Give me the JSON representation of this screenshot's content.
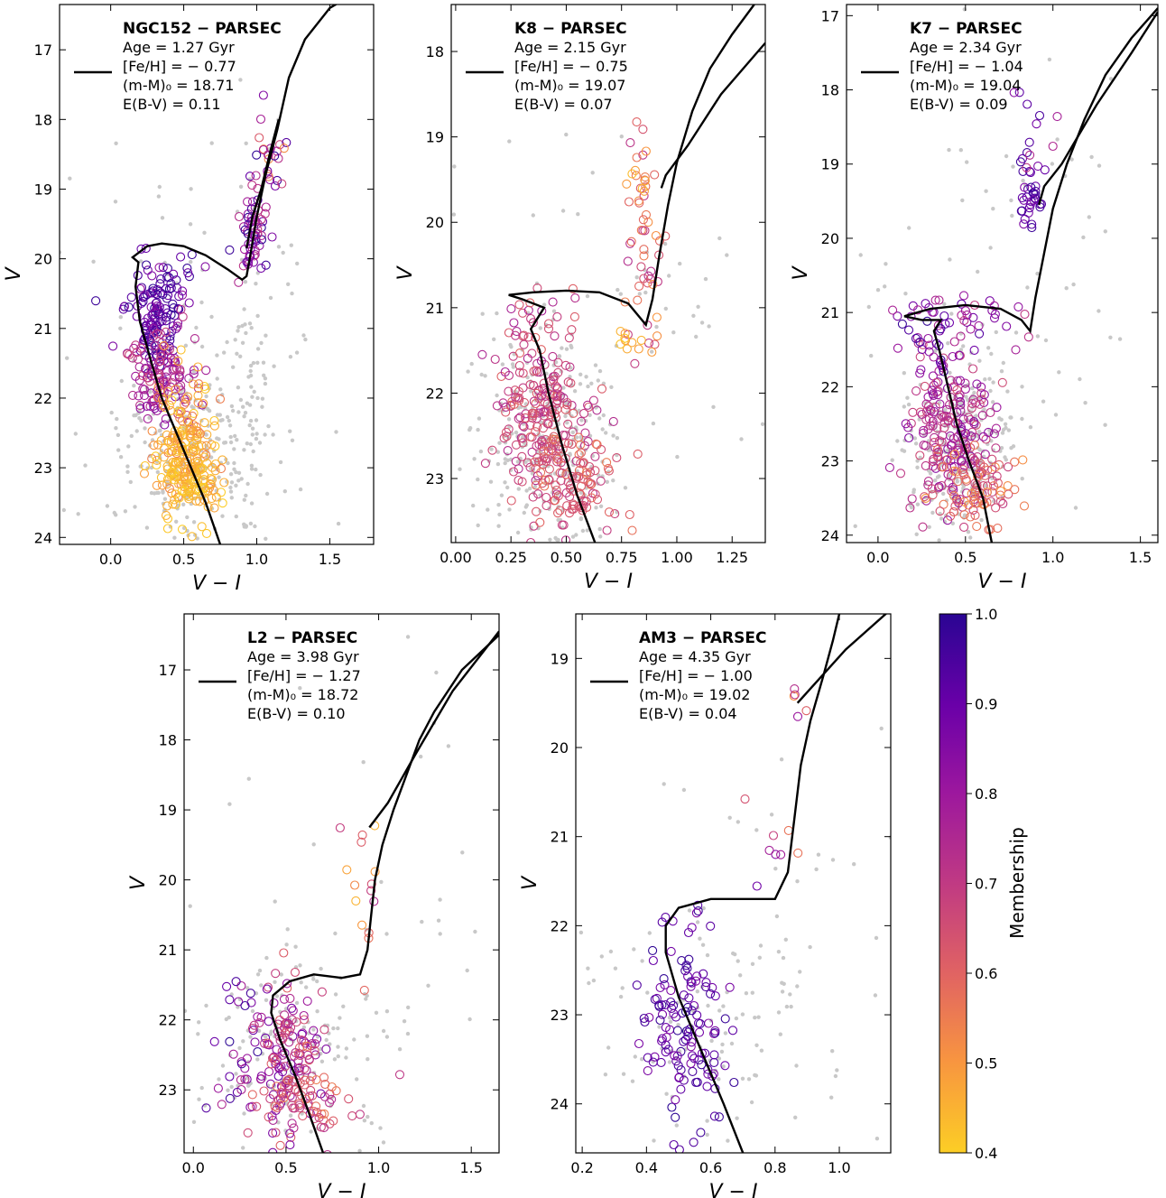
{
  "colorbar": {
    "label": "Membership",
    "ticks": [
      "1.0",
      "0.9",
      "0.8",
      "0.7",
      "0.6",
      "0.5",
      "0.4"
    ],
    "range": [
      0.4,
      1.0
    ]
  },
  "background_color": "#c8c8c8",
  "isochrone_color": "#000000",
  "chart_data": [
    {
      "type": "scatter",
      "name": "NGC152",
      "title": "NGC152 − PARSEC",
      "params": [
        "Age = 1.27 Gyr",
        "[Fe/H] = − 0.77",
        "(m-M)₀ = 18.71",
        "E(B-V) = 0.11"
      ],
      "xlabel": "V − I",
      "ylabel": "V",
      "xlim": [
        -0.35,
        1.8
      ],
      "ylim": [
        24.1,
        16.35
      ],
      "y_inverted": true,
      "xticks": [
        0.0,
        0.5,
        1.0,
        1.5
      ],
      "xtick_labels": [
        "0.0",
        "0.5",
        "1.0",
        "1.5"
      ],
      "yticks": [
        17,
        18,
        19,
        20,
        21,
        22,
        23,
        24
      ],
      "ytick_labels": [
        "17",
        "18",
        "19",
        "20",
        "21",
        "22",
        "23",
        "24"
      ],
      "isochrone": [
        [
          0.75,
          24.1
        ],
        [
          0.65,
          23.5
        ],
        [
          0.55,
          23.0
        ],
        [
          0.45,
          22.5
        ],
        [
          0.35,
          22.0
        ],
        [
          0.28,
          21.5
        ],
        [
          0.2,
          20.9
        ],
        [
          0.17,
          20.4
        ],
        [
          0.19,
          20.05
        ],
        [
          0.15,
          19.98
        ],
        [
          0.25,
          19.82
        ],
        [
          0.35,
          19.78
        ],
        [
          0.5,
          19.82
        ],
        [
          0.65,
          19.95
        ],
        [
          0.8,
          20.15
        ],
        [
          0.9,
          20.3
        ],
        [
          0.93,
          20.25
        ],
        [
          0.96,
          19.9
        ],
        [
          1.0,
          19.4
        ],
        [
          1.06,
          18.8
        ],
        [
          1.14,
          18.15
        ],
        [
          1.22,
          17.4
        ],
        [
          1.33,
          16.85
        ],
        [
          1.5,
          16.4
        ],
        [
          1.62,
          16.25
        ]
      ],
      "isochrone_agb": [
        [
          0.93,
          19.85
        ],
        [
          0.97,
          19.4
        ],
        [
          1.03,
          19.0
        ],
        [
          1.1,
          18.4
        ],
        [
          1.15,
          18.0
        ]
      ],
      "members": [
        {
          "cx": 0.3,
          "cy": 20.9,
          "sx": 0.1,
          "sy": 0.35,
          "n": 120,
          "m": [
            0.85,
            1.0
          ]
        },
        {
          "cx": 0.32,
          "cy": 21.7,
          "sx": 0.12,
          "sy": 0.35,
          "n": 120,
          "m": [
            0.65,
            0.85
          ]
        },
        {
          "cx": 0.5,
          "cy": 22.6,
          "sx": 0.12,
          "sy": 0.4,
          "n": 140,
          "m": [
            0.4,
            0.55
          ]
        },
        {
          "cx": 0.55,
          "cy": 23.2,
          "sx": 0.1,
          "sy": 0.3,
          "n": 110,
          "m": [
            0.4,
            0.48
          ]
        },
        {
          "cx": 0.98,
          "cy": 19.6,
          "sx": 0.05,
          "sy": 0.3,
          "n": 60,
          "m": [
            0.7,
            1.0
          ]
        },
        {
          "cx": 1.1,
          "cy": 18.5,
          "sx": 0.06,
          "sy": 0.4,
          "n": 25,
          "m": [
            0.5,
            1.0
          ]
        },
        {
          "cx": 0.4,
          "cy": 20.3,
          "sx": 0.15,
          "sy": 0.15,
          "n": 20,
          "m": [
            0.8,
            1.0
          ]
        }
      ],
      "background": [
        {
          "cx": 0.55,
          "cy": 22.8,
          "sx": 0.25,
          "sy": 0.7,
          "n": 260
        },
        {
          "cx": 0.95,
          "cy": 21.5,
          "sx": 0.06,
          "sy": 1.2,
          "n": 60
        },
        {
          "cx": 0.6,
          "cy": 21.0,
          "sx": 0.6,
          "sy": 1.8,
          "n": 90
        }
      ]
    },
    {
      "type": "scatter",
      "name": "K8",
      "title": "K8 − PARSEC",
      "params": [
        "Age = 2.15 Gyr",
        "[Fe/H] = − 0.75",
        "(m-M)₀ = 19.07",
        "E(B-V) = 0.07"
      ],
      "xlabel": "V − I",
      "ylabel": "V",
      "xlim": [
        -0.02,
        1.4
      ],
      "ylim": [
        23.75,
        17.45
      ],
      "y_inverted": true,
      "xticks": [
        0.0,
        0.25,
        0.5,
        0.75,
        1.0,
        1.25
      ],
      "xtick_labels": [
        "0.00",
        "0.25",
        "0.50",
        "0.75",
        "1.00",
        "1.25"
      ],
      "yticks": [
        18,
        19,
        20,
        21,
        22,
        23
      ],
      "ytick_labels": [
        "18",
        "19",
        "20",
        "21",
        "22",
        "23"
      ],
      "isochrone": [
        [
          0.63,
          23.75
        ],
        [
          0.55,
          23.2
        ],
        [
          0.48,
          22.6
        ],
        [
          0.42,
          22.0
        ],
        [
          0.38,
          21.5
        ],
        [
          0.34,
          21.25
        ],
        [
          0.4,
          21.0
        ],
        [
          0.3,
          20.9
        ],
        [
          0.24,
          20.85
        ],
        [
          0.35,
          20.82
        ],
        [
          0.5,
          20.8
        ],
        [
          0.65,
          20.82
        ],
        [
          0.78,
          20.95
        ],
        [
          0.86,
          21.2
        ],
        [
          0.89,
          20.9
        ],
        [
          0.92,
          20.4
        ],
        [
          0.96,
          19.8
        ],
        [
          1.0,
          19.3
        ],
        [
          1.07,
          18.7
        ],
        [
          1.15,
          18.2
        ],
        [
          1.25,
          17.8
        ],
        [
          1.35,
          17.45
        ]
      ],
      "isochrone_agb": [
        [
          0.93,
          19.6
        ],
        [
          0.95,
          19.45
        ],
        [
          1.05,
          19.1
        ],
        [
          1.2,
          18.5
        ],
        [
          1.4,
          17.9
        ]
      ],
      "members": [
        {
          "cx": 0.4,
          "cy": 22.3,
          "sx": 0.1,
          "sy": 0.5,
          "n": 200,
          "m": [
            0.6,
            0.75
          ]
        },
        {
          "cx": 0.55,
          "cy": 23.0,
          "sx": 0.1,
          "sy": 0.35,
          "n": 90,
          "m": [
            0.55,
            0.7
          ]
        },
        {
          "cx": 0.35,
          "cy": 21.2,
          "sx": 0.12,
          "sy": 0.3,
          "n": 30,
          "m": [
            0.6,
            0.8
          ]
        },
        {
          "cx": 0.85,
          "cy": 20.5,
          "sx": 0.04,
          "sy": 0.6,
          "n": 40,
          "m": [
            0.5,
            0.75
          ]
        },
        {
          "cx": 0.83,
          "cy": 19.5,
          "sx": 0.03,
          "sy": 0.15,
          "n": 15,
          "m": [
            0.4,
            0.6
          ]
        },
        {
          "cx": 0.8,
          "cy": 21.4,
          "sx": 0.06,
          "sy": 0.1,
          "n": 10,
          "m": [
            0.4,
            0.5
          ]
        }
      ],
      "background": [
        {
          "cx": 0.42,
          "cy": 22.6,
          "sx": 0.15,
          "sy": 0.6,
          "n": 300
        },
        {
          "cx": 0.6,
          "cy": 21.0,
          "sx": 0.35,
          "sy": 1.4,
          "n": 70
        }
      ]
    },
    {
      "type": "scatter",
      "name": "K7",
      "title": "K7 − PARSEC",
      "params": [
        "Age = 2.34 Gyr",
        "[Fe/H] = − 1.04",
        "(m-M)₀ = 19.04",
        "E(B-V) = 0.09"
      ],
      "xlabel": "V − I",
      "ylabel": "V",
      "xlim": [
        -0.18,
        1.6
      ],
      "ylim": [
        24.1,
        16.85
      ],
      "y_inverted": true,
      "xticks": [
        0.0,
        0.5,
        1.0,
        1.5
      ],
      "xtick_labels": [
        "0.0",
        "0.5",
        "1.0",
        "1.5"
      ],
      "yticks": [
        17,
        18,
        19,
        20,
        21,
        22,
        23,
        24
      ],
      "ytick_labels": [
        "17",
        "18",
        "19",
        "20",
        "21",
        "22",
        "23",
        "24"
      ],
      "isochrone": [
        [
          0.65,
          24.1
        ],
        [
          0.6,
          23.5
        ],
        [
          0.52,
          23.0
        ],
        [
          0.45,
          22.5
        ],
        [
          0.4,
          22.0
        ],
        [
          0.35,
          21.5
        ],
        [
          0.32,
          21.25
        ],
        [
          0.36,
          21.1
        ],
        [
          0.25,
          21.1
        ],
        [
          0.15,
          21.05
        ],
        [
          0.3,
          20.95
        ],
        [
          0.5,
          20.9
        ],
        [
          0.7,
          20.95
        ],
        [
          0.82,
          21.1
        ],
        [
          0.87,
          21.25
        ],
        [
          0.9,
          20.8
        ],
        [
          0.95,
          20.2
        ],
        [
          1.0,
          19.6
        ],
        [
          1.08,
          19.0
        ],
        [
          1.18,
          18.4
        ],
        [
          1.3,
          17.8
        ],
        [
          1.45,
          17.3
        ],
        [
          1.6,
          16.9
        ]
      ],
      "isochrone_agb": [
        [
          0.92,
          19.55
        ],
        [
          0.95,
          19.3
        ],
        [
          1.05,
          19.0
        ],
        [
          1.25,
          18.2
        ],
        [
          1.45,
          17.5
        ],
        [
          1.6,
          16.95
        ]
      ],
      "members": [
        {
          "cx": 0.42,
          "cy": 22.6,
          "sx": 0.12,
          "sy": 0.55,
          "n": 200,
          "m": [
            0.65,
            0.85
          ]
        },
        {
          "cx": 0.55,
          "cy": 23.4,
          "sx": 0.12,
          "sy": 0.3,
          "n": 90,
          "m": [
            0.5,
            0.7
          ]
        },
        {
          "cx": 0.3,
          "cy": 21.3,
          "sx": 0.12,
          "sy": 0.3,
          "n": 40,
          "m": [
            0.75,
            1.0
          ]
        },
        {
          "cx": 0.88,
          "cy": 19.4,
          "sx": 0.04,
          "sy": 0.2,
          "n": 30,
          "m": [
            0.85,
            1.0
          ]
        },
        {
          "cx": 0.9,
          "cy": 18.5,
          "sx": 0.06,
          "sy": 0.5,
          "n": 15,
          "m": [
            0.7,
            1.0
          ]
        },
        {
          "cx": 0.6,
          "cy": 21.1,
          "sx": 0.15,
          "sy": 0.15,
          "n": 20,
          "m": [
            0.7,
            0.9
          ]
        }
      ],
      "background": [
        {
          "cx": 0.45,
          "cy": 22.8,
          "sx": 0.15,
          "sy": 0.6,
          "n": 280
        },
        {
          "cx": 0.7,
          "cy": 20.5,
          "sx": 0.4,
          "sy": 1.6,
          "n": 70
        }
      ]
    },
    {
      "type": "scatter",
      "name": "L2",
      "title": "L2 − PARSEC",
      "params": [
        "Age = 3.98 Gyr",
        "[Fe/H] = − 1.27",
        "(m-M)₀ = 18.72",
        "E(B-V) = 0.10"
      ],
      "xlabel": "V − I",
      "ylabel": "V",
      "xlim": [
        -0.05,
        1.65
      ],
      "ylim": [
        23.9,
        16.2
      ],
      "y_inverted": true,
      "xticks": [
        0.0,
        0.5,
        1.0,
        1.5
      ],
      "xtick_labels": [
        "0.0",
        "0.5",
        "1.0",
        "1.5"
      ],
      "yticks": [
        17,
        18,
        19,
        20,
        21,
        22,
        23
      ],
      "ytick_labels": [
        "17",
        "18",
        "19",
        "20",
        "21",
        "22",
        "23"
      ],
      "isochrone": [
        [
          0.7,
          23.9
        ],
        [
          0.62,
          23.3
        ],
        [
          0.55,
          22.8
        ],
        [
          0.47,
          22.3
        ],
        [
          0.42,
          21.9
        ],
        [
          0.43,
          21.65
        ],
        [
          0.52,
          21.45
        ],
        [
          0.65,
          21.35
        ],
        [
          0.8,
          21.4
        ],
        [
          0.9,
          21.35
        ],
        [
          0.94,
          21.0
        ],
        [
          0.96,
          20.5
        ],
        [
          0.98,
          20.0
        ],
        [
          1.02,
          19.5
        ],
        [
          1.08,
          19.0
        ],
        [
          1.15,
          18.5
        ],
        [
          1.22,
          18.0
        ],
        [
          1.3,
          17.6
        ],
        [
          1.45,
          17.0
        ],
        [
          1.65,
          16.5
        ]
      ],
      "isochrone_agb": [
        [
          0.95,
          19.25
        ],
        [
          1.05,
          18.9
        ],
        [
          1.2,
          18.2
        ],
        [
          1.4,
          17.3
        ],
        [
          1.65,
          16.45
        ]
      ],
      "members": [
        {
          "cx": 0.5,
          "cy": 22.5,
          "sx": 0.1,
          "sy": 0.5,
          "n": 140,
          "m": [
            0.6,
            0.9
          ]
        },
        {
          "cx": 0.6,
          "cy": 23.1,
          "sx": 0.12,
          "sy": 0.35,
          "n": 70,
          "m": [
            0.55,
            0.75
          ]
        },
        {
          "cx": 0.25,
          "cy": 22.3,
          "sx": 0.08,
          "sy": 0.6,
          "n": 20,
          "m": [
            0.75,
            1.0
          ]
        },
        {
          "cx": 0.93,
          "cy": 20.0,
          "sx": 0.05,
          "sy": 0.8,
          "n": 15,
          "m": [
            0.4,
            0.8
          ]
        }
      ],
      "background": [
        {
          "cx": 0.55,
          "cy": 22.6,
          "sx": 0.25,
          "sy": 0.8,
          "n": 160
        },
        {
          "cx": 0.9,
          "cy": 20.5,
          "sx": 0.35,
          "sy": 1.5,
          "n": 40
        }
      ]
    },
    {
      "type": "scatter",
      "name": "AM3",
      "title": "AM3 − PARSEC",
      "params": [
        "Age = 4.35 Gyr",
        "[Fe/H] = − 1.00",
        "(m-M)₀ = 19.02",
        "E(B-V) = 0.04"
      ],
      "xlabel": "V − I",
      "ylabel": "V",
      "xlim": [
        0.18,
        1.16
      ],
      "ylim": [
        24.55,
        18.5
      ],
      "y_inverted": true,
      "xticks": [
        0.2,
        0.4,
        0.6,
        0.8,
        1.0
      ],
      "xtick_labels": [
        "0.2",
        "0.4",
        "0.6",
        "0.8",
        "1.0"
      ],
      "yticks": [
        19,
        20,
        21,
        22,
        23,
        24
      ],
      "ytick_labels": [
        "19",
        "20",
        "21",
        "22",
        "23",
        "24"
      ],
      "isochrone": [
        [
          0.7,
          24.55
        ],
        [
          0.64,
          24.0
        ],
        [
          0.57,
          23.4
        ],
        [
          0.5,
          22.8
        ],
        [
          0.46,
          22.3
        ],
        [
          0.46,
          22.0
        ],
        [
          0.5,
          21.8
        ],
        [
          0.6,
          21.7
        ],
        [
          0.72,
          21.7
        ],
        [
          0.8,
          21.7
        ],
        [
          0.84,
          21.4
        ],
        [
          0.86,
          20.8
        ],
        [
          0.88,
          20.2
        ],
        [
          0.91,
          19.7
        ],
        [
          0.95,
          19.2
        ],
        [
          0.98,
          18.8
        ],
        [
          1.0,
          18.5
        ]
      ],
      "isochrone_agb": [
        [
          0.87,
          19.5
        ],
        [
          0.92,
          19.3
        ],
        [
          1.02,
          18.9
        ],
        [
          1.16,
          18.45
        ]
      ],
      "members": [
        {
          "cx": 0.52,
          "cy": 23.1,
          "sx": 0.07,
          "sy": 0.55,
          "n": 130,
          "m": [
            0.85,
            1.0
          ]
        },
        {
          "cx": 0.8,
          "cy": 21.4,
          "sx": 0.04,
          "sy": 0.4,
          "n": 8,
          "m": [
            0.55,
            0.9
          ]
        },
        {
          "cx": 0.88,
          "cy": 19.6,
          "sx": 0.03,
          "sy": 0.2,
          "n": 5,
          "m": [
            0.5,
            0.9
          ]
        }
      ],
      "background": [
        {
          "cx": 0.6,
          "cy": 23.0,
          "sx": 0.2,
          "sy": 0.9,
          "n": 110
        },
        {
          "cx": 0.8,
          "cy": 21.5,
          "sx": 0.25,
          "sy": 1.6,
          "n": 30
        }
      ]
    }
  ]
}
